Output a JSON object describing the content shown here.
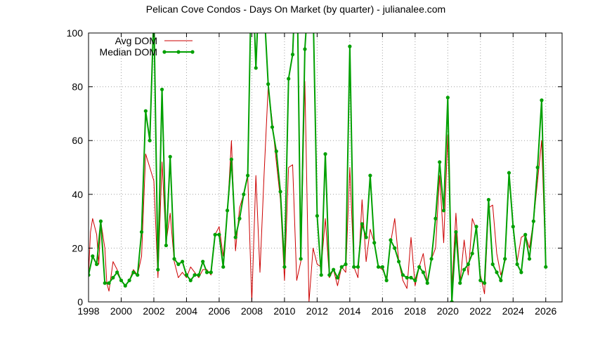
{
  "chart_data": {
    "type": "line",
    "title": "Pelican Cove Condos - Days On Market (by quarter) - julianalee.com",
    "xlabel": "",
    "ylabel": "",
    "xlim": [
      1998,
      2027
    ],
    "ylim": [
      0,
      100
    ],
    "x_ticks": [
      "1998",
      "2000",
      "2002",
      "2004",
      "2006",
      "2008",
      "2010",
      "2012",
      "2014",
      "2016",
      "2018",
      "2020",
      "2022",
      "2024",
      "2026"
    ],
    "y_ticks": [
      "0",
      "20",
      "40",
      "60",
      "80",
      "100"
    ],
    "grid": true,
    "legend": "top-left",
    "series": [
      {
        "name": "Avg DOM",
        "color": "#cc0000",
        "markers": false,
        "points": [
          [
            1998.0,
            10
          ],
          [
            1998.12,
            26
          ],
          [
            1998.25,
            31
          ],
          [
            1998.5,
            25
          ],
          [
            1998.63,
            14
          ],
          [
            1998.75,
            30
          ],
          [
            1999.0,
            20
          ],
          [
            1999.12,
            7
          ],
          [
            1999.25,
            4
          ],
          [
            1999.5,
            15
          ],
          [
            1999.75,
            12
          ],
          [
            2000.0,
            8
          ],
          [
            2000.25,
            6
          ],
          [
            2000.5,
            8
          ],
          [
            2000.75,
            12
          ],
          [
            2001.0,
            10
          ],
          [
            2001.25,
            17
          ],
          [
            2001.5,
            55
          ],
          [
            2001.75,
            50
          ],
          [
            2002.0,
            45
          ],
          [
            2002.25,
            9
          ],
          [
            2002.5,
            52
          ],
          [
            2002.75,
            22
          ],
          [
            2003.0,
            33
          ],
          [
            2003.25,
            15
          ],
          [
            2003.5,
            9
          ],
          [
            2003.75,
            11
          ],
          [
            2004.0,
            9
          ],
          [
            2004.25,
            13
          ],
          [
            2004.5,
            11
          ],
          [
            2004.75,
            9
          ],
          [
            2005.0,
            12
          ],
          [
            2005.25,
            12
          ],
          [
            2005.5,
            10
          ],
          [
            2005.75,
            25
          ],
          [
            2006.0,
            28
          ],
          [
            2006.25,
            17
          ],
          [
            2006.5,
            33
          ],
          [
            2006.75,
            60
          ],
          [
            2007.0,
            19
          ],
          [
            2007.25,
            35
          ],
          [
            2007.5,
            40
          ],
          [
            2007.75,
            47
          ],
          [
            2008.0,
            0
          ],
          [
            2008.25,
            47
          ],
          [
            2008.5,
            11
          ],
          [
            2008.75,
            47
          ],
          [
            2009.0,
            80
          ],
          [
            2009.25,
            67
          ],
          [
            2009.5,
            52
          ],
          [
            2009.75,
            38
          ],
          [
            2010.0,
            8
          ],
          [
            2010.25,
            50
          ],
          [
            2010.5,
            51
          ],
          [
            2010.75,
            8
          ],
          [
            2011.0,
            15
          ],
          [
            2011.25,
            82
          ],
          [
            2011.5,
            0
          ],
          [
            2011.75,
            20
          ],
          [
            2012.0,
            14
          ],
          [
            2012.25,
            13
          ],
          [
            2012.5,
            31
          ],
          [
            2012.75,
            9
          ],
          [
            2013.0,
            12
          ],
          [
            2013.25,
            6
          ],
          [
            2013.5,
            13
          ],
          [
            2013.75,
            11
          ],
          [
            2014.0,
            50
          ],
          [
            2014.25,
            13
          ],
          [
            2014.5,
            9
          ],
          [
            2014.75,
            38
          ],
          [
            2015.0,
            15
          ],
          [
            2015.25,
            27
          ],
          [
            2015.5,
            22
          ],
          [
            2015.75,
            13
          ],
          [
            2016.0,
            12
          ],
          [
            2016.25,
            9
          ],
          [
            2016.5,
            22
          ],
          [
            2016.75,
            31
          ],
          [
            2017.0,
            15
          ],
          [
            2017.25,
            8
          ],
          [
            2017.5,
            5
          ],
          [
            2017.75,
            24
          ],
          [
            2018.0,
            6
          ],
          [
            2018.25,
            13
          ],
          [
            2018.5,
            18
          ],
          [
            2018.75,
            7
          ],
          [
            2019.0,
            16
          ],
          [
            2019.25,
            20
          ],
          [
            2019.5,
            47
          ],
          [
            2019.75,
            22
          ],
          [
            2020.0,
            62
          ],
          [
            2020.25,
            5
          ],
          [
            2020.5,
            33
          ],
          [
            2020.75,
            7
          ],
          [
            2021.0,
            23
          ],
          [
            2021.25,
            10
          ],
          [
            2021.5,
            31
          ],
          [
            2021.75,
            27
          ],
          [
            2022.0,
            10
          ],
          [
            2022.25,
            3
          ],
          [
            2022.5,
            35
          ],
          [
            2022.75,
            36
          ],
          [
            2023.0,
            18
          ],
          [
            2023.25,
            10
          ],
          [
            2023.5,
            15
          ],
          [
            2023.75,
            46
          ],
          [
            2024.0,
            28
          ],
          [
            2024.25,
            15
          ],
          [
            2024.5,
            24
          ],
          [
            2024.75,
            25
          ],
          [
            2025.0,
            20
          ],
          [
            2025.25,
            30
          ],
          [
            2025.5,
            45
          ],
          [
            2025.75,
            60
          ],
          [
            2026.0,
            13
          ]
        ]
      },
      {
        "name": "Median DOM",
        "color": "#00a000",
        "markers": true,
        "points": [
          [
            1998.0,
            10
          ],
          [
            1998.25,
            17
          ],
          [
            1998.5,
            14
          ],
          [
            1998.75,
            30
          ],
          [
            1999.0,
            7
          ],
          [
            1999.25,
            7
          ],
          [
            1999.5,
            9
          ],
          [
            1999.75,
            11
          ],
          [
            2000.0,
            8
          ],
          [
            2000.25,
            6
          ],
          [
            2000.5,
            8
          ],
          [
            2000.75,
            11
          ],
          [
            2001.0,
            10
          ],
          [
            2001.25,
            26
          ],
          [
            2001.5,
            71
          ],
          [
            2001.75,
            60
          ],
          [
            2002.0,
            108
          ],
          [
            2002.25,
            12
          ],
          [
            2002.5,
            79
          ],
          [
            2002.75,
            21
          ],
          [
            2003.0,
            54
          ],
          [
            2003.25,
            16
          ],
          [
            2003.5,
            14
          ],
          [
            2003.75,
            15
          ],
          [
            2004.0,
            10
          ],
          [
            2004.25,
            8
          ],
          [
            2004.5,
            10
          ],
          [
            2004.75,
            10
          ],
          [
            2005.0,
            15
          ],
          [
            2005.25,
            11
          ],
          [
            2005.5,
            11
          ],
          [
            2005.75,
            25
          ],
          [
            2006.0,
            25
          ],
          [
            2006.25,
            13
          ],
          [
            2006.5,
            34
          ],
          [
            2006.75,
            53
          ],
          [
            2007.0,
            24
          ],
          [
            2007.25,
            31
          ],
          [
            2007.5,
            40
          ],
          [
            2007.75,
            47
          ],
          [
            2008.0,
            130
          ],
          [
            2008.25,
            87
          ],
          [
            2008.5,
            125
          ],
          [
            2008.75,
            110
          ],
          [
            2009.0,
            81
          ],
          [
            2009.25,
            65
          ],
          [
            2009.5,
            56
          ],
          [
            2009.75,
            41
          ],
          [
            2010.0,
            13
          ],
          [
            2010.25,
            83
          ],
          [
            2010.5,
            92
          ],
          [
            2010.75,
            130
          ],
          [
            2011.0,
            16
          ],
          [
            2011.25,
            94
          ],
          [
            2011.5,
            118
          ],
          [
            2011.75,
            110
          ],
          [
            2012.0,
            32
          ],
          [
            2012.25,
            10
          ],
          [
            2012.5,
            55
          ],
          [
            2012.75,
            10
          ],
          [
            2013.0,
            12
          ],
          [
            2013.25,
            9
          ],
          [
            2013.5,
            13
          ],
          [
            2013.75,
            14
          ],
          [
            2014.0,
            95
          ],
          [
            2014.25,
            13
          ],
          [
            2014.5,
            13
          ],
          [
            2014.75,
            29
          ],
          [
            2015.0,
            24
          ],
          [
            2015.25,
            47
          ],
          [
            2015.5,
            22
          ],
          [
            2015.75,
            13
          ],
          [
            2016.0,
            13
          ],
          [
            2016.25,
            8
          ],
          [
            2016.5,
            23
          ],
          [
            2016.75,
            20
          ],
          [
            2017.0,
            15
          ],
          [
            2017.25,
            10
          ],
          [
            2017.5,
            9
          ],
          [
            2017.75,
            9
          ],
          [
            2018.0,
            8
          ],
          [
            2018.25,
            13
          ],
          [
            2018.5,
            11
          ],
          [
            2018.75,
            7
          ],
          [
            2019.0,
            16
          ],
          [
            2019.25,
            31
          ],
          [
            2019.5,
            52
          ],
          [
            2019.75,
            34
          ],
          [
            2020.0,
            76
          ],
          [
            2020.25,
            0
          ],
          [
            2020.5,
            26
          ],
          [
            2020.75,
            7
          ],
          [
            2021.0,
            12
          ],
          [
            2021.25,
            14
          ],
          [
            2021.5,
            18
          ],
          [
            2021.75,
            28
          ],
          [
            2022.0,
            8
          ],
          [
            2022.25,
            7
          ],
          [
            2022.5,
            38
          ],
          [
            2022.75,
            14
          ],
          [
            2023.0,
            11
          ],
          [
            2023.25,
            8
          ],
          [
            2023.5,
            16
          ],
          [
            2023.75,
            48
          ],
          [
            2024.0,
            28
          ],
          [
            2024.25,
            14
          ],
          [
            2024.5,
            11
          ],
          [
            2024.75,
            25
          ],
          [
            2025.0,
            16
          ],
          [
            2025.25,
            30
          ],
          [
            2025.5,
            50
          ],
          [
            2025.75,
            75
          ],
          [
            2026.0,
            13
          ]
        ]
      }
    ]
  }
}
